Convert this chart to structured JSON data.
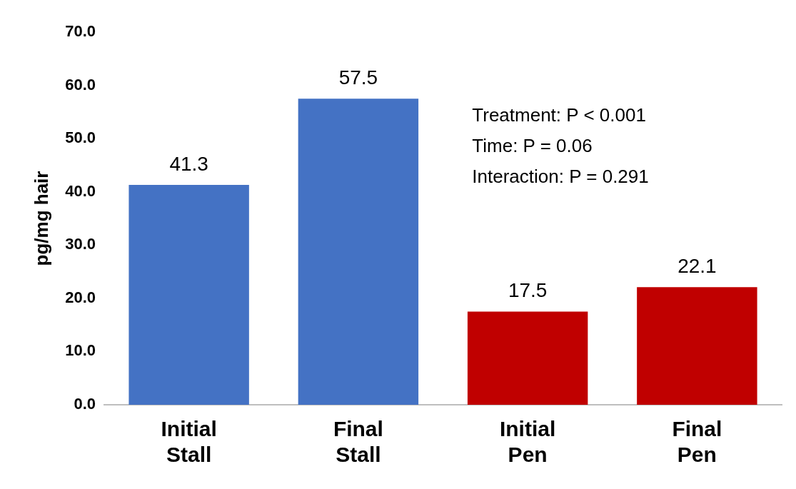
{
  "chart_data": {
    "type": "bar",
    "ylabel": "pg/mg hair",
    "categories": [
      "Initial Stall",
      "Final Stall",
      "Initial Pen",
      "Final Pen"
    ],
    "values": [
      41.3,
      57.5,
      17.5,
      22.1
    ],
    "colors": [
      "#4472c4",
      "#4472c4",
      "#c00000",
      "#c00000"
    ],
    "ylim": [
      0,
      70
    ],
    "yticks": [
      {
        "value": 0,
        "label": "0.0"
      },
      {
        "value": 10,
        "label": "10.0"
      },
      {
        "value": 20,
        "label": "20.0"
      },
      {
        "value": 30,
        "label": "30.0"
      },
      {
        "value": 40,
        "label": "40.0"
      },
      {
        "value": 50,
        "label": "50.0"
      },
      {
        "value": 60,
        "label": "60.0"
      },
      {
        "value": 70,
        "label": "70.0"
      }
    ],
    "data_labels": true,
    "grid": false,
    "legend": false,
    "annotations": [
      "Treatment: P < 0.001",
      "Time: P = 0.06",
      "Interaction: P = 0.291"
    ]
  }
}
